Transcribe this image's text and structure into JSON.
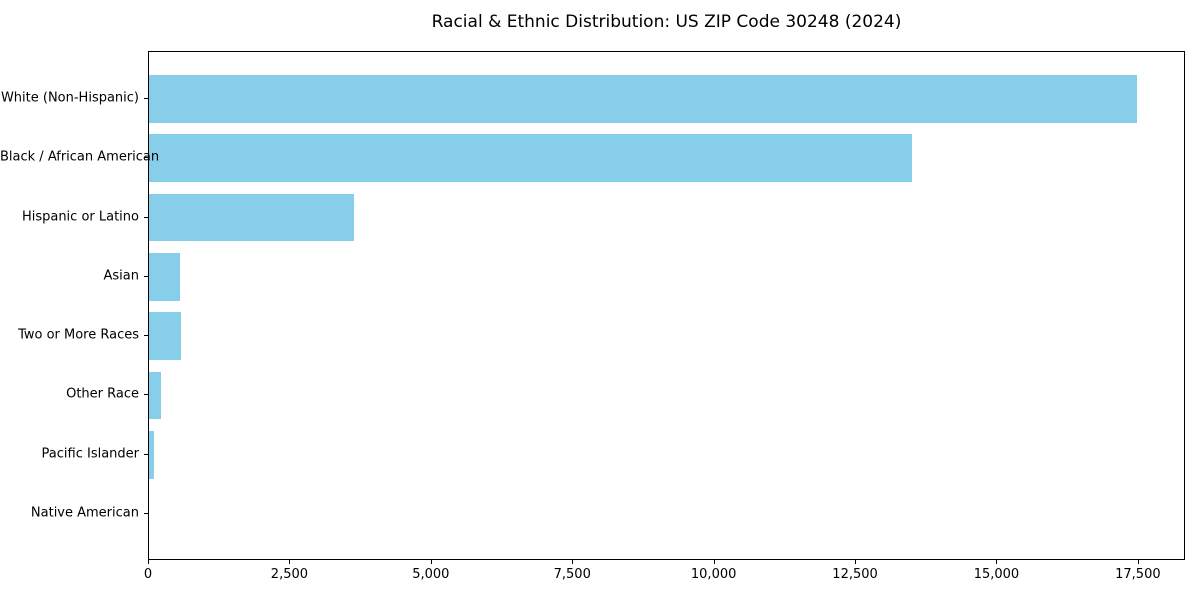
{
  "chart_data": {
    "type": "bar",
    "orientation": "horizontal",
    "title": "Racial & Ethnic Distribution: US ZIP Code 30248 (2024)",
    "categories": [
      "White (Non-Hispanic)",
      "Black / African American",
      "Hispanic or Latino",
      "Asian",
      "Two or More Races",
      "Other Race",
      "Pacific Islander",
      "Native American"
    ],
    "values": [
      17460,
      13490,
      3620,
      550,
      565,
      220,
      90,
      0
    ],
    "xlabel": "",
    "ylabel": "",
    "xlim": [
      0,
      18333
    ],
    "xticks": [
      0,
      2500,
      5000,
      7500,
      10000,
      12500,
      15000,
      17500
    ],
    "xtick_labels": [
      "0",
      "2,500",
      "5,000",
      "7,500",
      "10,000",
      "12,500",
      "15,000",
      "17,500"
    ],
    "bar_color": "#87CEEB",
    "grid": false,
    "legend": "none"
  }
}
